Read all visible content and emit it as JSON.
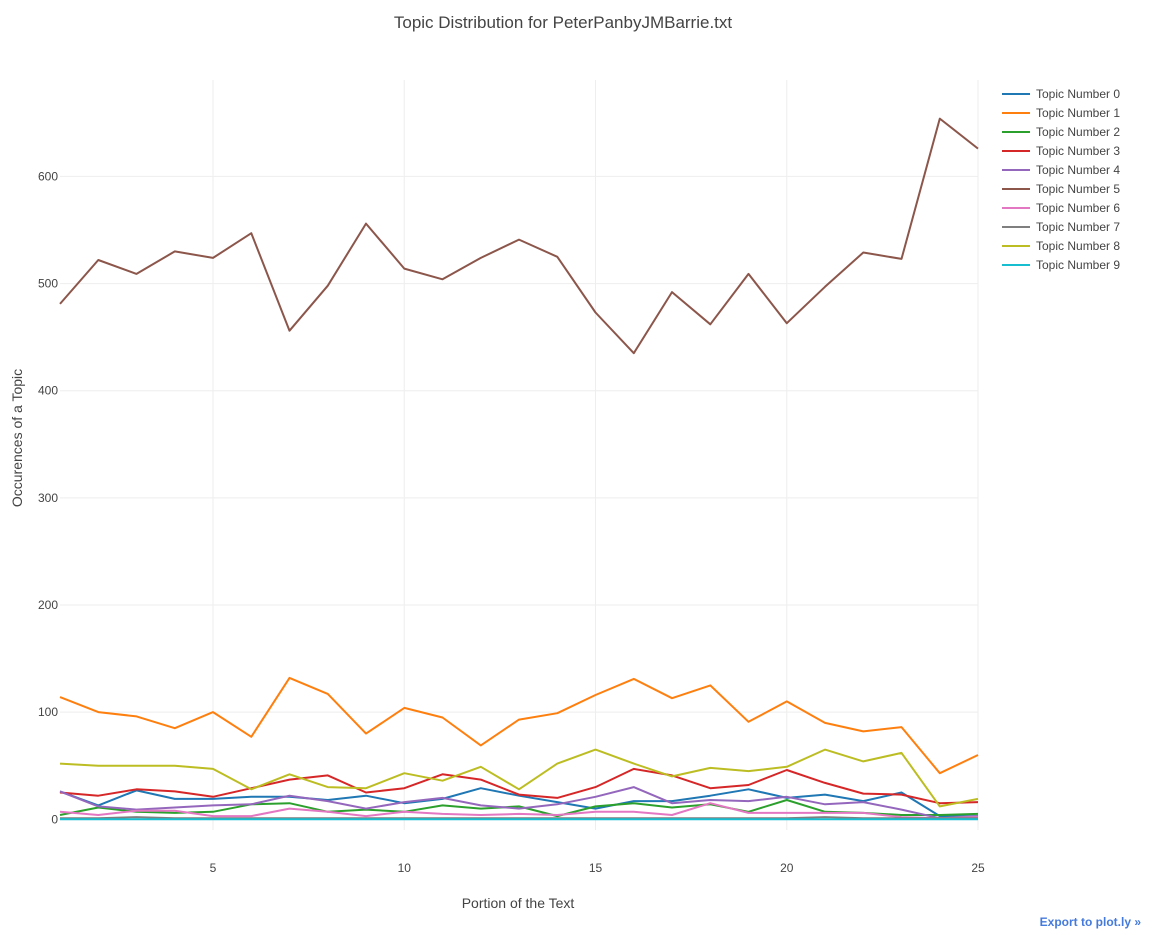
{
  "chart_data": {
    "type": "line",
    "title": "Topic Distribution for PeterPanbyJMBarrie.txt",
    "xlabel": "Portion of the Text",
    "ylabel": "Occurences of a Topic",
    "xlim": [
      1,
      25
    ],
    "ylim": [
      -10,
      690
    ],
    "xticks": [
      5,
      10,
      15,
      20,
      25
    ],
    "yticks": [
      0,
      100,
      200,
      300,
      400,
      500,
      600
    ],
    "grid": true,
    "legend_position": "top-right",
    "x": [
      1,
      2,
      3,
      4,
      5,
      6,
      7,
      8,
      9,
      10,
      11,
      12,
      13,
      14,
      15,
      16,
      17,
      18,
      19,
      20,
      21,
      22,
      23,
      24,
      25
    ],
    "series": [
      {
        "name": "Topic Number 0",
        "color": "#1f77b4",
        "values": [
          26,
          13,
          27,
          19,
          19,
          21,
          21,
          18,
          22,
          15,
          19,
          29,
          22,
          16,
          10,
          17,
          17,
          22,
          28,
          20,
          23,
          17,
          25,
          3,
          3
        ]
      },
      {
        "name": "Topic Number 1",
        "color": "#ff7f0e",
        "values": [
          114,
          100,
          96,
          85,
          100,
          77,
          132,
          117,
          80,
          104,
          95,
          69,
          93,
          99,
          116,
          131,
          113,
          125,
          91,
          110,
          90,
          82,
          86,
          43,
          60
        ]
      },
      {
        "name": "Topic Number 2",
        "color": "#2ca02c",
        "values": [
          4,
          11,
          7,
          6,
          7,
          14,
          15,
          7,
          9,
          7,
          13,
          10,
          12,
          3,
          12,
          15,
          11,
          14,
          7,
          18,
          7,
          6,
          4,
          4,
          5
        ]
      },
      {
        "name": "Topic Number 3",
        "color": "#d62728",
        "values": [
          25,
          22,
          28,
          26,
          21,
          29,
          37,
          41,
          25,
          29,
          42,
          37,
          23,
          20,
          30,
          47,
          41,
          29,
          32,
          46,
          34,
          24,
          23,
          15,
          16
        ]
      },
      {
        "name": "Topic Number 4",
        "color": "#9467bd",
        "values": [
          26,
          12,
          9,
          11,
          13,
          14,
          22,
          17,
          10,
          16,
          20,
          13,
          10,
          14,
          21,
          30,
          15,
          18,
          17,
          21,
          14,
          16,
          9,
          1,
          3
        ]
      },
      {
        "name": "Topic Number 5",
        "color": "#8c564b",
        "values": [
          481,
          522,
          509,
          530,
          524,
          547,
          456,
          498,
          556,
          514,
          504,
          524,
          541,
          525,
          473,
          435,
          492,
          462,
          509,
          463,
          497,
          529,
          523,
          654,
          626
        ]
      },
      {
        "name": "Topic Number 6",
        "color": "#e377c2",
        "values": [
          7,
          4,
          8,
          8,
          3,
          3,
          10,
          7,
          3,
          7,
          5,
          4,
          5,
          4,
          7,
          7,
          4,
          15,
          6,
          6,
          6,
          6,
          2,
          1,
          2
        ]
      },
      {
        "name": "Topic Number 7",
        "color": "#7f7f7f",
        "values": [
          1,
          1,
          2,
          1,
          1,
          1,
          1,
          1,
          1,
          1,
          1,
          1,
          1,
          1,
          1,
          1,
          1,
          1,
          1,
          1,
          2,
          1,
          1,
          1,
          1
        ]
      },
      {
        "name": "Topic Number 8",
        "color": "#bcbd22",
        "values": [
          52,
          50,
          50,
          50,
          47,
          28,
          42,
          30,
          29,
          43,
          36,
          49,
          28,
          52,
          65,
          52,
          40,
          48,
          45,
          49,
          65,
          54,
          62,
          12,
          19
        ]
      },
      {
        "name": "Topic Number 9",
        "color": "#17becf",
        "values": [
          0,
          0,
          0,
          0,
          0,
          0,
          0,
          0,
          0,
          0,
          0,
          0,
          0,
          0,
          0,
          0,
          0,
          0,
          0,
          0,
          0,
          0,
          0,
          0,
          0
        ]
      }
    ]
  },
  "export": {
    "label": "Export to plot.ly »"
  }
}
